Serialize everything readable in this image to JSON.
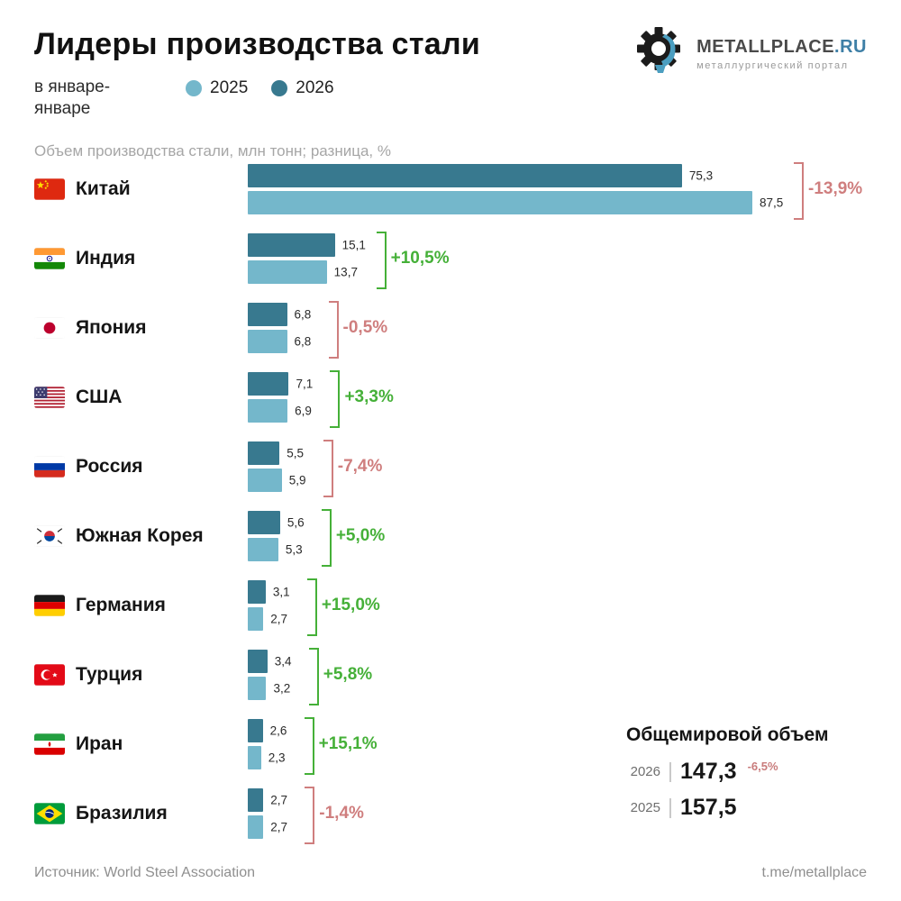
{
  "header": {
    "title": "Лидеры производства стали",
    "period": "в январе-\nянваре",
    "legend": [
      {
        "label": "2025",
        "color": "#74b7cb"
      },
      {
        "label": "2026",
        "color": "#38798f"
      }
    ],
    "logo": {
      "brand": "METALLPLACE",
      "tld": ".RU",
      "tagline": "металлургический портал"
    }
  },
  "subtitle": "Объем производства стали, млн тонн; разница, %",
  "chart_data": {
    "type": "bar",
    "orientation": "horizontal",
    "title": "Лидеры производства стали",
    "unit": "млн тонн",
    "xlim": [
      0,
      87.5
    ],
    "series_order": [
      "2026",
      "2025"
    ],
    "colors": {
      "2026": "#38798f",
      "2025": "#74b7cb",
      "positive": "#45b038",
      "negative": "#cf7e7e"
    },
    "countries": [
      {
        "name": "Китай",
        "flag": "cn",
        "v2026": 75.3,
        "v2025": 87.5,
        "diff": "-13,9%",
        "trend": "negative"
      },
      {
        "name": "Индия",
        "flag": "in",
        "v2026": 15.1,
        "v2025": 13.7,
        "diff": "+10,5%",
        "trend": "positive"
      },
      {
        "name": "Япония",
        "flag": "jp",
        "v2026": 6.8,
        "v2025": 6.8,
        "diff": "-0,5%",
        "trend": "negative"
      },
      {
        "name": "США",
        "flag": "us",
        "v2026": 7.1,
        "v2025": 6.9,
        "diff": "+3,3%",
        "trend": "positive"
      },
      {
        "name": "Россия",
        "flag": "ru",
        "v2026": 5.5,
        "v2025": 5.9,
        "diff": "-7,4%",
        "trend": "negative"
      },
      {
        "name": "Южная Корея",
        "flag": "kr",
        "v2026": 5.6,
        "v2025": 5.3,
        "diff": "+5,0%",
        "trend": "positive"
      },
      {
        "name": "Германия",
        "flag": "de",
        "v2026": 3.1,
        "v2025": 2.7,
        "diff": "+15,0%",
        "trend": "positive"
      },
      {
        "name": "Турция",
        "flag": "tr",
        "v2026": 3.4,
        "v2025": 3.2,
        "diff": "+5,8%",
        "trend": "positive"
      },
      {
        "name": "Иран",
        "flag": "ir",
        "v2026": 2.6,
        "v2025": 2.3,
        "diff": "+15,1%",
        "trend": "positive"
      },
      {
        "name": "Бразилия",
        "flag": "br",
        "v2026": 2.7,
        "v2025": 2.7,
        "diff": "-1,4%",
        "trend": "negative"
      }
    ]
  },
  "world_total": {
    "title": "Общемировой объем",
    "rows": [
      {
        "year": "2026",
        "value": 147.3,
        "diff": "-6,5%"
      },
      {
        "year": "2025",
        "value": 157.5,
        "diff": ""
      }
    ]
  },
  "footer": {
    "source": "Источник: World Steel Association",
    "link": "t.me/metallplace"
  }
}
